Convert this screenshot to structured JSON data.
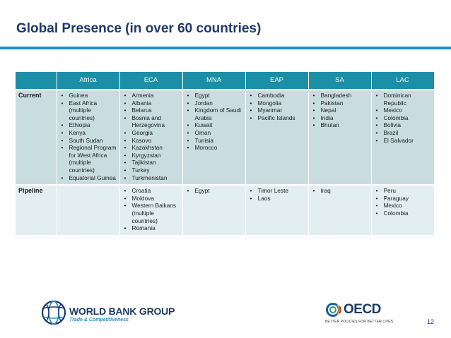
{
  "slide": {
    "title": "Global Presence (in over 60 countries)",
    "page_number": "12"
  },
  "table": {
    "columns": [
      "Africa",
      "ECA",
      "MNA",
      "EAP",
      "SA",
      "LAC"
    ],
    "rows": [
      {
        "label": "Current",
        "cells": [
          [
            "Guinea",
            "East Africa (multiple countries)",
            "Ethiopia",
            "Kenya",
            "South Sudan",
            "Regional Program for West Africa (multiple countries)",
            "Equatorial Guinea"
          ],
          [
            "Armenia",
            "Albania",
            "Belarus",
            "Bosnia and Herzegovina",
            "Georgia",
            "Kosovo",
            "Kazakhstan",
            "Kyrgyzstan",
            "Tajikistan",
            "Turkey",
            "Turkmenistan"
          ],
          [
            "Egypt",
            "Jordan",
            "Kingdom of Saudi Arabia",
            "Kuwait",
            "Oman",
            "Tunisia",
            "Morocco"
          ],
          [
            "Cambodia",
            "Mongolia",
            "Myanmar",
            "Pacific Islands"
          ],
          [
            "Bangladesh",
            "Pakistan",
            "Nepal",
            "India",
            "Bhutan"
          ],
          [
            "Dominican Republic",
            "Mexico",
            "Colombia",
            "Bolivia",
            "Brazil",
            "El Salvador"
          ]
        ]
      },
      {
        "label": "Pipeline",
        "cells": [
          [],
          [
            "Croatia",
            "Moldova",
            "Western Balkans (multiple countries)",
            "Romania"
          ],
          [
            "Egypt"
          ],
          [
            "Timor Leste",
            "Laos"
          ],
          [
            "Iraq"
          ],
          [
            "Peru",
            "Paraguay",
            "Mexico",
            "Colombia"
          ]
        ]
      }
    ]
  },
  "logos": {
    "wbg_name": "WORLD BANK GROUP",
    "wbg_sub": "Trade & Competitiveness",
    "oecd_name": "OECD",
    "oecd_tagline": "BETTER POLICIES FOR BETTER LIVES"
  },
  "colors": {
    "title": "#1f3a68",
    "rule": "#1f8fce",
    "header_bg": "#1a8fa5",
    "current_bg": "#c9dde1",
    "pipeline_bg": "#e3eef0"
  }
}
